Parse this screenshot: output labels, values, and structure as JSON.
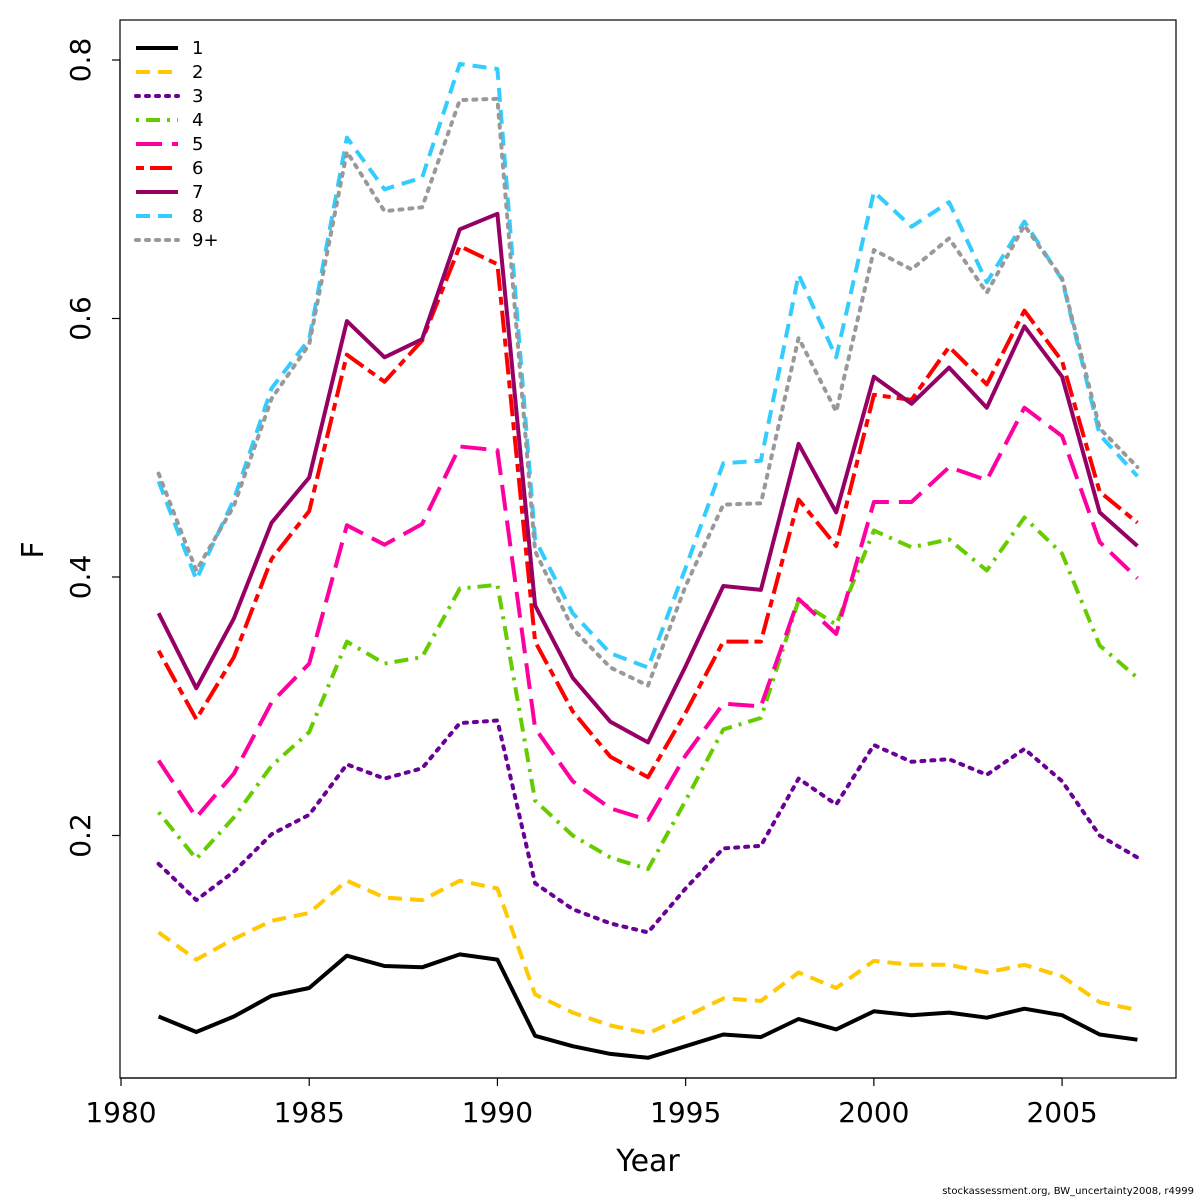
{
  "chart_data": {
    "type": "line",
    "title": "",
    "xlabel": "Year",
    "ylabel": "F",
    "xlim": [
      1980,
      2008
    ],
    "ylim": [
      0.0,
      0.8
    ],
    "x_ticks": [
      1980,
      1985,
      1990,
      1995,
      2000,
      2005
    ],
    "y_ticks": [
      0.2,
      0.4,
      0.6,
      0.8
    ],
    "x_tick_labels": [
      "1980",
      "1985",
      "1990",
      "1995",
      "2000",
      "2005"
    ],
    "y_tick_labels": [
      "0.2",
      "0.4",
      "0.6",
      "0.8"
    ],
    "legend_position": "top-left",
    "grid": false,
    "x": [
      1981,
      1982,
      1983,
      1984,
      1985,
      1986,
      1987,
      1988,
      1989,
      1990,
      1991,
      1992,
      1993,
      1994,
      1995,
      1996,
      1997,
      1998,
      1999,
      2000,
      2001,
      2002,
      2003,
      2004,
      2005,
      2006,
      2007
    ],
    "series": [
      {
        "name": "1",
        "color": "#000000",
        "dash": "solid",
        "values": [
          0.06,
          0.048,
          0.06,
          0.076,
          0.082,
          0.107,
          0.099,
          0.098,
          0.108,
          0.104,
          0.045,
          0.037,
          0.031,
          0.028,
          0.037,
          0.046,
          0.044,
          0.058,
          0.05,
          0.064,
          0.061,
          0.063,
          0.059,
          0.066,
          0.061,
          0.046,
          0.042
        ]
      },
      {
        "name": "2",
        "color": "#FFC800",
        "dash": "dashed",
        "values": [
          0.125,
          0.104,
          0.12,
          0.134,
          0.14,
          0.165,
          0.152,
          0.15,
          0.165,
          0.159,
          0.077,
          0.063,
          0.053,
          0.047,
          0.06,
          0.074,
          0.072,
          0.094,
          0.082,
          0.103,
          0.1,
          0.1,
          0.094,
          0.1,
          0.091,
          0.071,
          0.065
        ]
      },
      {
        "name": "3",
        "color": "#6A0096",
        "dash": "dotted",
        "values": [
          0.178,
          0.15,
          0.172,
          0.201,
          0.216,
          0.255,
          0.244,
          0.252,
          0.287,
          0.289,
          0.163,
          0.143,
          0.132,
          0.125,
          0.159,
          0.19,
          0.192,
          0.244,
          0.224,
          0.27,
          0.257,
          0.259,
          0.247,
          0.267,
          0.242,
          0.2,
          0.183
        ]
      },
      {
        "name": "4",
        "color": "#66CC00",
        "dash": "dotdash",
        "values": [
          0.218,
          0.182,
          0.214,
          0.254,
          0.28,
          0.35,
          0.333,
          0.338,
          0.391,
          0.394,
          0.227,
          0.2,
          0.183,
          0.174,
          0.227,
          0.282,
          0.291,
          0.382,
          0.363,
          0.436,
          0.423,
          0.429,
          0.405,
          0.446,
          0.418,
          0.347,
          0.322
        ]
      },
      {
        "name": "5",
        "color": "#FF00A0",
        "dash": "longdash",
        "values": [
          0.258,
          0.214,
          0.248,
          0.303,
          0.333,
          0.44,
          0.425,
          0.441,
          0.501,
          0.498,
          0.283,
          0.242,
          0.221,
          0.212,
          0.262,
          0.302,
          0.3,
          0.383,
          0.356,
          0.458,
          0.458,
          0.485,
          0.475,
          0.531,
          0.509,
          0.427,
          0.399
        ]
      },
      {
        "name": "6",
        "color": "#FF0000",
        "dash": "twodash",
        "values": [
          0.343,
          0.29,
          0.338,
          0.414,
          0.451,
          0.572,
          0.551,
          0.583,
          0.656,
          0.642,
          0.35,
          0.296,
          0.261,
          0.245,
          0.295,
          0.35,
          0.35,
          0.46,
          0.424,
          0.541,
          0.537,
          0.578,
          0.549,
          0.606,
          0.567,
          0.466,
          0.442
        ]
      },
      {
        "name": "7",
        "color": "#960064",
        "dash": "solid",
        "values": [
          0.372,
          0.314,
          0.368,
          0.442,
          0.477,
          0.598,
          0.57,
          0.584,
          0.669,
          0.681,
          0.378,
          0.322,
          0.288,
          0.272,
          0.331,
          0.393,
          0.39,
          0.503,
          0.45,
          0.555,
          0.534,
          0.562,
          0.531,
          0.594,
          0.555,
          0.45,
          0.424
        ]
      },
      {
        "name": "8",
        "color": "#33CCFF",
        "dash": "dashed",
        "values": [
          0.474,
          0.398,
          0.46,
          0.546,
          0.584,
          0.74,
          0.7,
          0.709,
          0.797,
          0.793,
          0.429,
          0.372,
          0.341,
          0.33,
          0.407,
          0.488,
          0.49,
          0.634,
          0.57,
          0.698,
          0.671,
          0.69,
          0.628,
          0.675,
          0.63,
          0.51,
          0.478
        ]
      },
      {
        "name": "9+",
        "color": "#999999",
        "dash": "dotted",
        "values": [
          0.48,
          0.405,
          0.455,
          0.538,
          0.58,
          0.729,
          0.683,
          0.686,
          0.769,
          0.77,
          0.42,
          0.36,
          0.33,
          0.316,
          0.393,
          0.456,
          0.457,
          0.585,
          0.528,
          0.653,
          0.638,
          0.662,
          0.62,
          0.672,
          0.631,
          0.515,
          0.485
        ]
      }
    ]
  },
  "footer_text": "stockassessment.org, BW_uncertainty2008, r4999"
}
